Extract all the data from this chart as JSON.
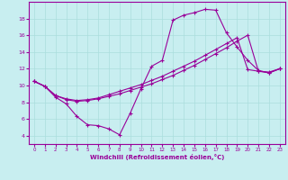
{
  "xlabel": "Windchill (Refroidissement éolien,°C)",
  "background_color": "#c8eef0",
  "line_color": "#990099",
  "xlim": [
    -0.5,
    23.5
  ],
  "ylim": [
    3.0,
    20.0
  ],
  "xticks": [
    0,
    1,
    2,
    3,
    4,
    5,
    6,
    7,
    8,
    9,
    10,
    11,
    12,
    13,
    14,
    15,
    16,
    17,
    18,
    19,
    20,
    21,
    22,
    23
  ],
  "yticks": [
    4,
    6,
    8,
    10,
    12,
    14,
    16,
    18
  ],
  "grid_color": "#aadddd",
  "line1_x": [
    0,
    1,
    2,
    3,
    4,
    5,
    6,
    7,
    8,
    9,
    10,
    11,
    12,
    13,
    14,
    15,
    16,
    17,
    18,
    19,
    20,
    21,
    22,
    23
  ],
  "line1_y": [
    10.5,
    9.9,
    8.6,
    7.8,
    6.3,
    5.3,
    5.2,
    4.8,
    4.1,
    6.7,
    9.6,
    12.3,
    13.0,
    17.8,
    18.4,
    18.7,
    19.1,
    19.0,
    16.3,
    14.6,
    13.0,
    11.8,
    11.5,
    12.0
  ],
  "line2_x": [
    0,
    1,
    2,
    3,
    4,
    5,
    6,
    7,
    8,
    9,
    10,
    11,
    12,
    13,
    14,
    15,
    16,
    17,
    18,
    19,
    20,
    21,
    22,
    23
  ],
  "line2_y": [
    10.5,
    9.9,
    8.8,
    8.3,
    8.1,
    8.2,
    8.4,
    8.7,
    9.0,
    9.4,
    9.8,
    10.2,
    10.7,
    11.2,
    11.8,
    12.4,
    13.1,
    13.8,
    14.5,
    15.3,
    16.0,
    11.7,
    11.6,
    12.0
  ],
  "line3_x": [
    0,
    1,
    2,
    3,
    4,
    5,
    6,
    7,
    8,
    9,
    10,
    11,
    12,
    13,
    14,
    15,
    16,
    17,
    18,
    19,
    20,
    21,
    22,
    23
  ],
  "line3_y": [
    10.5,
    9.9,
    8.8,
    8.4,
    8.2,
    8.3,
    8.5,
    8.9,
    9.3,
    9.7,
    10.1,
    10.6,
    11.1,
    11.7,
    12.3,
    12.9,
    13.6,
    14.3,
    15.0,
    15.7,
    11.9,
    11.7,
    11.5,
    12.0
  ]
}
